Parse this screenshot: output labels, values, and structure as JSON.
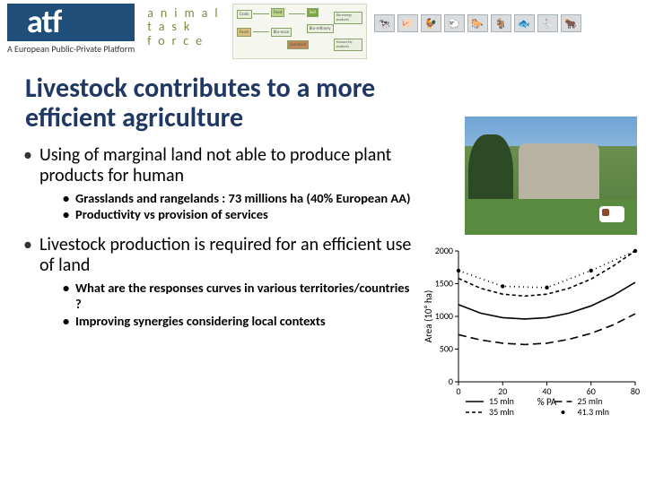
{
  "header": {
    "logo_text": "atf",
    "tagline": "A European Public-Private Platform",
    "sub_lines": [
      "animal",
      "task",
      "force"
    ],
    "animal_glyphs": [
      "🐄",
      "🐖",
      "🐓",
      "🐑",
      "🐎",
      "🐐",
      "🐟",
      "🐇",
      "🐂"
    ]
  },
  "title": "Livestock contributes to a more efficient agriculture",
  "bullets": [
    {
      "text": "Using of marginal land not able to produce plant products for human",
      "sub": [
        "Grasslands and rangelands : 73 millions ha (40% European AA)",
        "Productivity vs provision of services"
      ]
    },
    {
      "text": "Livestock production is required for an efficient use of land",
      "sub": [
        "What are the responses curves in various territories/countries ?",
        "Improving synergies considering local contexts"
      ]
    }
  ],
  "chart": {
    "type": "line",
    "xlabel": "% PA",
    "ylabel": "Area (10⁶ ha)",
    "xlim": [
      0,
      80
    ],
    "ylim": [
      0,
      2000
    ],
    "xticks": [
      0,
      20,
      40,
      60,
      80
    ],
    "yticks": [
      0,
      500,
      1000,
      1500,
      2000
    ],
    "tick_fontsize": 10,
    "label_fontsize": 11,
    "axis_color": "#000000",
    "background_color": "#ffffff",
    "line_width": 1.6,
    "series": [
      {
        "name": "15 mln",
        "color": "#000000",
        "dash": "solid",
        "x": [
          0,
          10,
          20,
          30,
          40,
          50,
          60,
          70,
          80
        ],
        "y": [
          1180,
          1050,
          980,
          960,
          980,
          1050,
          1160,
          1320,
          1520
        ]
      },
      {
        "name": "25 mln",
        "color": "#000000",
        "dash": "long-dash",
        "x": [
          0,
          10,
          20,
          30,
          40,
          50,
          60,
          70,
          80
        ],
        "y": [
          720,
          640,
          590,
          570,
          590,
          650,
          740,
          870,
          1040
        ]
      },
      {
        "name": "35 mln",
        "color": "#000000",
        "dash": "short-dash",
        "x": [
          0,
          10,
          20,
          30,
          40,
          50,
          60,
          70,
          80
        ],
        "y": [
          1580,
          1430,
          1340,
          1310,
          1340,
          1430,
          1570,
          1770,
          2010
        ]
      },
      {
        "name": "41.3 mln",
        "color": "#000000",
        "dash": "dot",
        "marker": "dot",
        "x": [
          0,
          20,
          40,
          60,
          80
        ],
        "y": [
          1700,
          1460,
          1440,
          1700,
          2100
        ]
      }
    ],
    "legend": {
      "position": "bottom",
      "fontsize": 10,
      "items": [
        "15 mln",
        "25 mln",
        "35 mln",
        "41.3 mln"
      ]
    }
  }
}
